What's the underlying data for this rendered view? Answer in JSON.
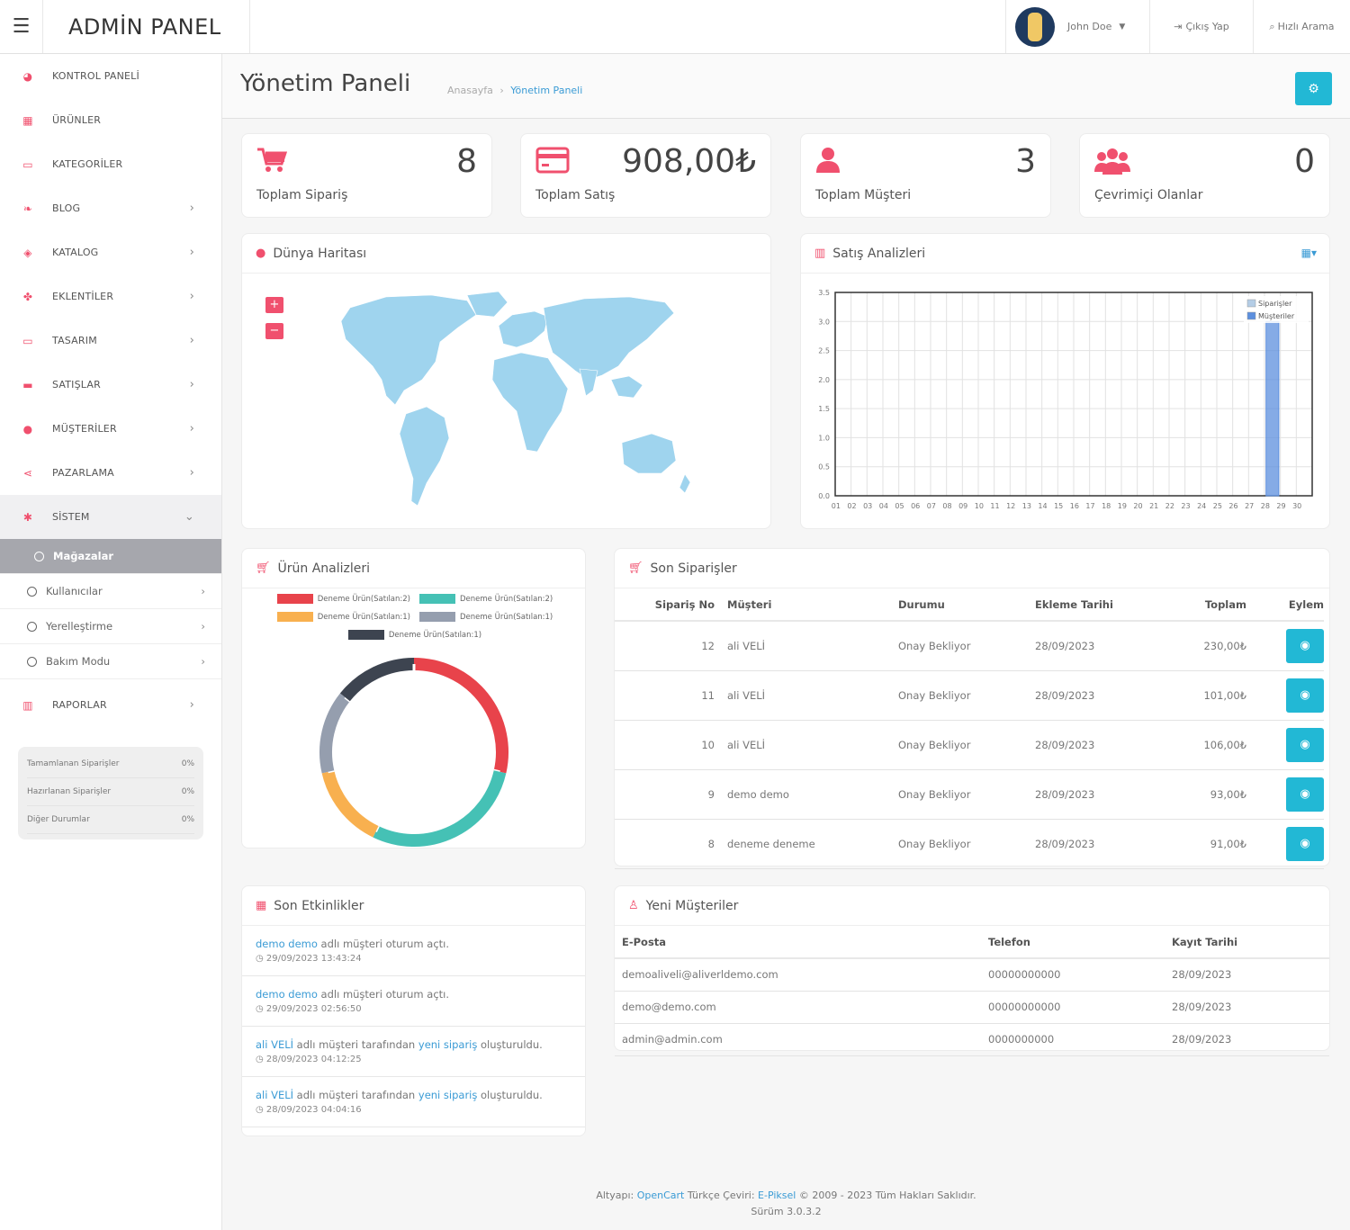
{
  "header": {
    "brand": "ADMİN PANEL",
    "user_name": "John Doe",
    "logout_label": "Çıkış Yap",
    "search_label": "Hızlı Arama"
  },
  "sidebar": {
    "items": [
      {
        "label": "KONTROL PANELİ",
        "icon": "dashboard-icon",
        "chev": ""
      },
      {
        "label": "ÜRÜNLER",
        "icon": "grid-icon",
        "chev": ""
      },
      {
        "label": "KATEGORİLER",
        "icon": "folder-icon",
        "chev": ""
      },
      {
        "label": "BLOG",
        "icon": "leaf-icon",
        "chev": "›"
      },
      {
        "label": "KATALOG",
        "icon": "tags-icon",
        "chev": "›"
      },
      {
        "label": "EKLENTİLER",
        "icon": "puzzle-icon",
        "chev": "›"
      },
      {
        "label": "TASARIM",
        "icon": "monitor-icon",
        "chev": "›"
      },
      {
        "label": "SATIŞLAR",
        "icon": "cart-icon",
        "chev": "›"
      },
      {
        "label": "MÜŞTERİLER",
        "icon": "user-icon",
        "chev": "›"
      },
      {
        "label": "PAZARLAMA",
        "icon": "share-icon",
        "chev": "›"
      },
      {
        "label": "SİSTEM",
        "icon": "gear-icon",
        "chev": "⌄"
      }
    ],
    "subitems": [
      {
        "label": "Mağazalar",
        "chev": ""
      },
      {
        "label": "Kullanıcılar",
        "chev": "›"
      },
      {
        "label": "Yerelleştirme",
        "chev": "›"
      },
      {
        "label": "Bakım Modu",
        "chev": "›"
      }
    ],
    "reports": {
      "label": "RAPORLAR",
      "icon": "bar-chart-icon",
      "chev": "›"
    },
    "stats": [
      {
        "label": "Tamamlanan Siparişler",
        "value": "0%"
      },
      {
        "label": "Hazırlanan Siparişler",
        "value": "0%"
      },
      {
        "label": "Diğer Durumlar",
        "value": "0%"
      }
    ]
  },
  "page": {
    "title": "Yönetim Paneli",
    "breadcrumb_home": "Anasayfa",
    "breadcrumb_sep": "›",
    "breadcrumb_current": "Yönetim Paneli"
  },
  "tiles": [
    {
      "label": "Toplam Sipariş",
      "value": "8",
      "icon": "cart-icon"
    },
    {
      "label": "Toplam Satış",
      "value": "908,00₺",
      "icon": "credit-card-icon"
    },
    {
      "label": "Toplam Müşteri",
      "value": "3",
      "icon": "user-icon"
    },
    {
      "label": "Çevrimiçi Olanlar",
      "value": "0",
      "icon": "users-icon"
    }
  ],
  "map": {
    "title": "Dünya Haritası",
    "zoom_in": "+",
    "zoom_out": "−",
    "land_color": "#9fd4ee"
  },
  "sales": {
    "title": "Satış Analizleri"
  },
  "chart_data": {
    "type": "bar",
    "x": [
      "01",
      "02",
      "03",
      "04",
      "05",
      "06",
      "07",
      "08",
      "09",
      "10",
      "11",
      "12",
      "13",
      "14",
      "15",
      "16",
      "17",
      "18",
      "19",
      "20",
      "21",
      "22",
      "23",
      "24",
      "25",
      "26",
      "27",
      "28",
      "29",
      "30"
    ],
    "series": [
      {
        "name": "Siparişler",
        "color": "#b4cde6",
        "values": [
          0,
          0,
          0,
          0,
          0,
          0,
          0,
          0,
          0,
          0,
          0,
          0,
          0,
          0,
          0,
          0,
          0,
          0,
          0,
          0,
          0,
          0,
          0,
          0,
          0,
          0,
          0,
          0,
          0,
          0
        ]
      },
      {
        "name": "Müşteriler",
        "color": "#5c8fde",
        "values": [
          0,
          0,
          0,
          0,
          0,
          0,
          0,
          0,
          0,
          0,
          0,
          0,
          0,
          0,
          0,
          0,
          0,
          0,
          0,
          0,
          0,
          0,
          0,
          0,
          0,
          0,
          0,
          3,
          0,
          0
        ]
      }
    ],
    "ylim": [
      0,
      3.5
    ],
    "yticks": [
      "0.0",
      "0.5",
      "1.0",
      "1.5",
      "2.0",
      "2.5",
      "3.0",
      "3.5"
    ],
    "grid": true,
    "legend": "top-right"
  },
  "products": {
    "title": "Ürün Analizleri",
    "legend": [
      {
        "label": "Deneme Ürün(Satılan:2)",
        "color": "#e8434b",
        "value": 2
      },
      {
        "label": "Deneme Ürün(Satılan:2)",
        "color": "#45c1b5",
        "value": 2
      },
      {
        "label": "Deneme Ürün(Satılan:1)",
        "color": "#f8b04f",
        "value": 1
      },
      {
        "label": "Deneme Ürün(Satılan:1)",
        "color": "#959eae",
        "value": 1
      },
      {
        "label": "Deneme Ürün(Satılan:1)",
        "color": "#3d4450",
        "value": 1
      }
    ]
  },
  "orders": {
    "title": "Son Siparişler",
    "headers": [
      "Sipariş No",
      "Müşteri",
      "Durumu",
      "Ekleme Tarihi",
      "Toplam",
      "Eylem"
    ],
    "rows": [
      {
        "no": "12",
        "customer": "ali VELİ",
        "status": "Onay Bekliyor",
        "date": "28/09/2023",
        "total": "230,00₺"
      },
      {
        "no": "11",
        "customer": "ali VELİ",
        "status": "Onay Bekliyor",
        "date": "28/09/2023",
        "total": "101,00₺"
      },
      {
        "no": "10",
        "customer": "ali VELİ",
        "status": "Onay Bekliyor",
        "date": "28/09/2023",
        "total": "106,00₺"
      },
      {
        "no": "9",
        "customer": "demo demo",
        "status": "Onay Bekliyor",
        "date": "28/09/2023",
        "total": "93,00₺"
      },
      {
        "no": "8",
        "customer": "deneme deneme",
        "status": "Onay Bekliyor",
        "date": "28/09/2023",
        "total": "91,00₺"
      }
    ]
  },
  "activities": {
    "title": "Son Etkinlikler",
    "items": [
      {
        "link": "demo demo",
        "text": " adlı müşteri oturum açtı.",
        "link2": "",
        "text2": "",
        "time": "29/09/2023 13:43:24"
      },
      {
        "link": "demo demo",
        "text": " adlı müşteri oturum açtı.",
        "link2": "",
        "text2": "",
        "time": "29/09/2023 02:56:50"
      },
      {
        "link": "ali VELİ",
        "text": " adlı müşteri tarafından ",
        "link2": "yeni sipariş",
        "text2": " oluşturuldu.",
        "time": "28/09/2023 04:12:25"
      },
      {
        "link": "ali VELİ",
        "text": " adlı müşteri tarafından ",
        "link2": "yeni sipariş",
        "text2": " oluşturuldu.",
        "time": "28/09/2023 04:04:16"
      }
    ]
  },
  "customers": {
    "title": "Yeni Müşteriler",
    "headers": [
      "E-Posta",
      "Telefon",
      "Kayıt Tarihi"
    ],
    "rows": [
      {
        "email": "demoaliveli@aliverldemo.com",
        "phone": "00000000000",
        "date": "28/09/2023"
      },
      {
        "email": "demo@demo.com",
        "phone": "00000000000",
        "date": "28/09/2023"
      },
      {
        "email": "admin@admin.com",
        "phone": "0000000000",
        "date": "28/09/2023"
      }
    ]
  },
  "footer": {
    "prefix": "Altyapı: ",
    "opencart": "OpenCart",
    "mid": " Türkçe Çeviri: ",
    "epiksel": "E-Piksel",
    "suffix": " © 2009 - 2023 Tüm Hakları Saklıdır.",
    "version": "Sürüm 3.0.3.2"
  }
}
